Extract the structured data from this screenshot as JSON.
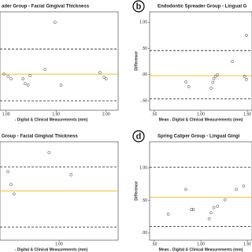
{
  "chart_data": [
    {
      "type": "scatter",
      "title": "ader Group - Facial Gingival Thickness",
      "x_label": "- Digital & Clinical Measurements (mm)",
      "x": [
        1.49,
        1.39,
        1.55,
        1.24,
        1.17,
        1.19,
        1.22,
        1.02,
        1.05,
        0.98,
        1.94,
        1.98,
        2.0
      ],
      "values": [
        1.0,
        0.1,
        -0.2,
        -0.02,
        -0.08,
        -0.17,
        -0.2,
        -0.03,
        -0.08,
        0.01,
        0.04,
        -0.05,
        -0.08
      ],
      "mean": 0.01,
      "upper_limit": 0.49,
      "lower_limit": -0.5,
      "mean_color": "#f2c12e",
      "xlim": [
        0.94,
        2.12
      ],
      "ylim": [
        -0.68,
        1.2
      ],
      "xticks": [
        {
          "value": 1,
          "label": "1.00"
        },
        {
          "value": 1.5,
          "label": "1.50"
        },
        {
          "value": 2,
          "label": "2.00"
        }
      ]
    },
    {
      "type": "scatter",
      "letter": "b",
      "title": "Endodontic Spreader Group - Lingual G",
      "x_label": "Mean - Digital & Clinical Measurements (mm)",
      "y_label": "Difference",
      "x": [
        1.49,
        1.34,
        0.84,
        0.87,
        1.11,
        1.13,
        1.14,
        1.16,
        1.18,
        1.47,
        1.49
      ],
      "values": [
        0.75,
        0.25,
        -0.14,
        -0.23,
        -0.26,
        -0.15,
        -0.08,
        -0.03,
        0.0,
        -0.03,
        -0.09
      ],
      "mean": -0.02,
      "upper_limit": 0.46,
      "lower_limit": -0.46,
      "mean_color": "#f2c12e",
      "xlim": [
        0.45,
        1.55
      ],
      "ylim": [
        -0.68,
        1.2
      ],
      "xticks": [
        {
          "value": 0.5,
          "label": ".50"
        },
        {
          "value": 1,
          "label": "1.00"
        },
        {
          "value": 1.5,
          "label": "1.50"
        }
      ],
      "yticks": [
        {
          "value": 1,
          "label": "1.00"
        },
        {
          "value": 0.5,
          "label": ".50"
        },
        {
          "value": 0,
          "label": ".00"
        },
        {
          "value": -0.5,
          "label": "-.50"
        }
      ]
    },
    {
      "type": "scatter",
      "title": "Group - Facial Gingival Thickness",
      "x_label": "- Digital & Clinical Measurements (mm)",
      "x": [
        0.49,
        0.52,
        0.55,
        0.9,
        1.12
      ],
      "values": [
        0.42,
        0.21,
        0.05,
        0.74,
        0.37
      ],
      "mean": 0.1,
      "upper_limit": 0.5,
      "lower_limit": -0.5,
      "mean_color": "#f2c12e",
      "xlim": [
        0.41,
        1.59
      ],
      "ylim": [
        -0.72,
        0.92
      ],
      "xticks": [
        {
          "value": 1,
          "label": "1.00"
        }
      ]
    },
    {
      "type": "scatter",
      "letter": "d",
      "title": "Spring Caliper Group - Lingual Gingi",
      "x_label": "Mean - Digital & Clinical Measurements (mm)",
      "y_label": "Difference",
      "x": [
        0.65,
        0.9,
        0.84,
        1.11,
        1.14,
        1.18,
        1.26,
        1.38,
        1.46,
        0.92,
        1.09
      ],
      "values": [
        0.29,
        0.36,
        0.67,
        0.31,
        0.39,
        0.41,
        0.51,
        0.67,
        0.72,
        0.36,
        0.22
      ],
      "mean": 0.55,
      "upper_limit": 1.01,
      "lower_limit": 0.1,
      "mean_color": "#f2c12e",
      "xlim": [
        0.45,
        1.55
      ],
      "ylim": [
        -0.11,
        1.4
      ],
      "xticks": [
        {
          "value": 0.5,
          "label": ".50"
        },
        {
          "value": 1,
          "label": "1.00"
        },
        {
          "value": 1.5,
          "label": "1.50"
        }
      ],
      "yticks": [
        {
          "value": 1,
          "label": "1.00"
        },
        {
          "value": 0.5,
          "label": ".50"
        },
        {
          "value": 0,
          "label": ".00"
        }
      ]
    }
  ]
}
